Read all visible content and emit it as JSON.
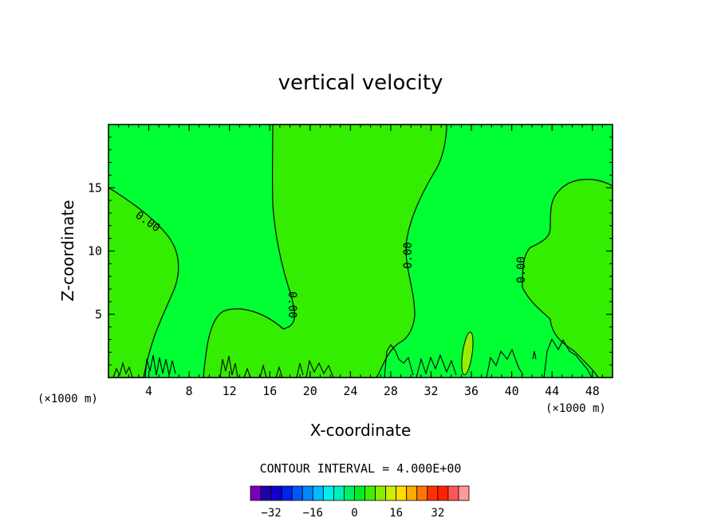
{
  "chart_data": {
    "type": "heatmap",
    "title": "vertical velocity",
    "xlabel": "X-coordinate",
    "ylabel": "Z-coordinate",
    "x_unit_left": "(×1000 m)",
    "x_unit_right": "(×1000 m)",
    "xlim": [
      0,
      50
    ],
    "ylim": [
      0,
      20
    ],
    "x_ticks": [
      4,
      8,
      12,
      16,
      20,
      24,
      28,
      32,
      36,
      40,
      44,
      48
    ],
    "x_tick_labels": [
      "4",
      "8",
      "12",
      "16",
      "20",
      "24",
      "28",
      "32",
      "36",
      "40",
      "44",
      "48"
    ],
    "y_ticks": [
      5,
      10,
      15
    ],
    "y_tick_labels": [
      "5",
      "10",
      "15"
    ],
    "grid": false,
    "contour_interval_text": "CONTOUR INTERVAL = 4.000E+00",
    "contour_labels": [
      "0.00",
      "0.00",
      "0.00",
      "0.00"
    ],
    "fields": [
      {
        "level": "0 to 4",
        "color": "#00ff33"
      },
      {
        "level": "-4 to 0",
        "color": "#33ee00"
      },
      {
        "level": "4 to 8",
        "color": "#99ee00"
      }
    ],
    "colorbar": {
      "colors": [
        "#7700bb",
        "#2200aa",
        "#1100cc",
        "#0022ee",
        "#0055ff",
        "#0088ff",
        "#00bbff",
        "#00eeee",
        "#00eebb",
        "#00ee66",
        "#00ee22",
        "#44ee00",
        "#88ee00",
        "#ccee00",
        "#ffdd00",
        "#ffaa00",
        "#ff7700",
        "#ff3300",
        "#ff2200",
        "#ff5555",
        "#ff9999"
      ],
      "tick_values": [
        -32,
        -16,
        0,
        16,
        32
      ],
      "tick_labels": [
        "−32",
        "−16",
        "0",
        "16",
        "32"
      ]
    }
  }
}
